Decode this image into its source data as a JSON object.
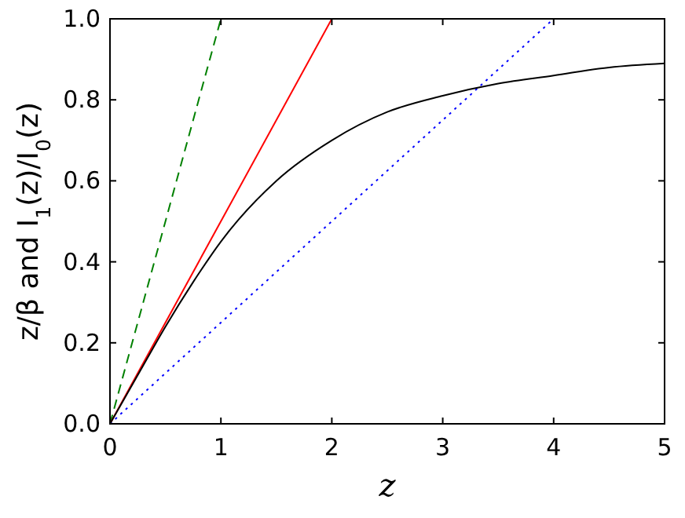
{
  "chart_data": {
    "type": "line",
    "xlabel": "z",
    "ylabel": "z/β  and  I$_{1}$(z)/I$_{0}$(z)",
    "xlim": [
      0,
      5
    ],
    "ylim": [
      0,
      1
    ],
    "xticks": [
      0,
      1,
      2,
      3,
      4,
      5
    ],
    "yticks": [
      {
        "value": 0,
        "label": "0.0"
      },
      {
        "value": 0.2,
        "label": "0.2"
      },
      {
        "value": 0.4,
        "label": "0.4"
      },
      {
        "value": 0.6,
        "label": "0.6"
      },
      {
        "value": 0.8,
        "label": "0.8"
      },
      {
        "value": 1,
        "label": "1.0"
      }
    ],
    "series": [
      {
        "color": "#008000",
        "line_style": "dashed",
        "x": [
          0,
          1
        ],
        "values": [
          0,
          1
        ]
      },
      {
        "color": "#ff0000",
        "line_style": "solid",
        "x": [
          0,
          2
        ],
        "values": [
          0,
          1
        ]
      },
      {
        "color": "#0000ff",
        "line_style": "dotted",
        "x": [
          0,
          4
        ],
        "values": [
          0,
          1
        ]
      },
      {
        "color": "#000000",
        "line_style": "solid",
        "x": [
          0,
          0.25,
          0.5,
          0.75,
          1,
          1.5,
          2,
          2.5,
          3,
          3.5,
          4,
          4.5,
          5
        ],
        "values": [
          0,
          0.12,
          0.24,
          0.35,
          0.45,
          0.6,
          0.7,
          0.77,
          0.81,
          0.84,
          0.86,
          0.88,
          0.89
        ]
      }
    ]
  }
}
